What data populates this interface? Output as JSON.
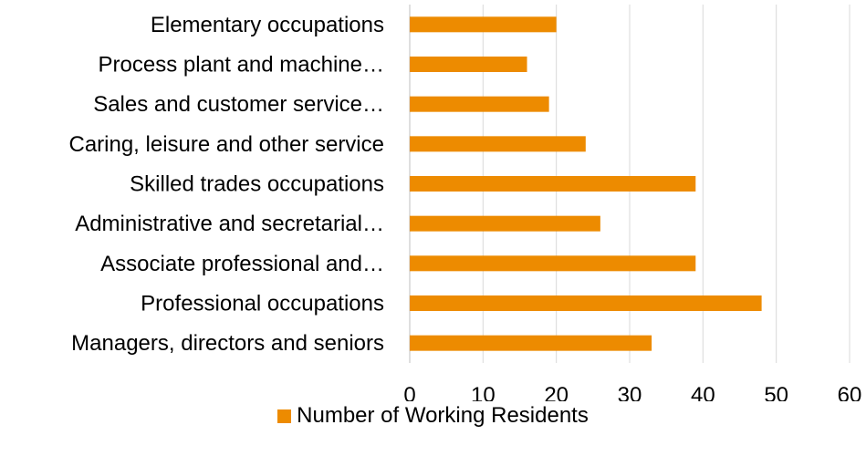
{
  "chart_data": {
    "type": "bar",
    "orientation": "horizontal",
    "categories": [
      "Managers, directors and seniors",
      "Professional occupations",
      "Associate professional and…",
      "Administrative and secretarial…",
      "Skilled trades occupations",
      "Caring, leisure and other service",
      "Sales and customer service…",
      "Process plant and machine…",
      "Elementary occupations"
    ],
    "series": [
      {
        "name": "Number of Working Residents",
        "values": [
          33,
          48,
          39,
          26,
          39,
          24,
          19,
          16,
          20
        ],
        "color": "#ED8B00"
      }
    ],
    "xlim": [
      0,
      60
    ],
    "xticks": [
      0,
      10,
      20,
      30,
      40,
      50,
      60
    ],
    "grid": true,
    "legend": "bottom",
    "gridline_color": "#D9D9D9"
  }
}
